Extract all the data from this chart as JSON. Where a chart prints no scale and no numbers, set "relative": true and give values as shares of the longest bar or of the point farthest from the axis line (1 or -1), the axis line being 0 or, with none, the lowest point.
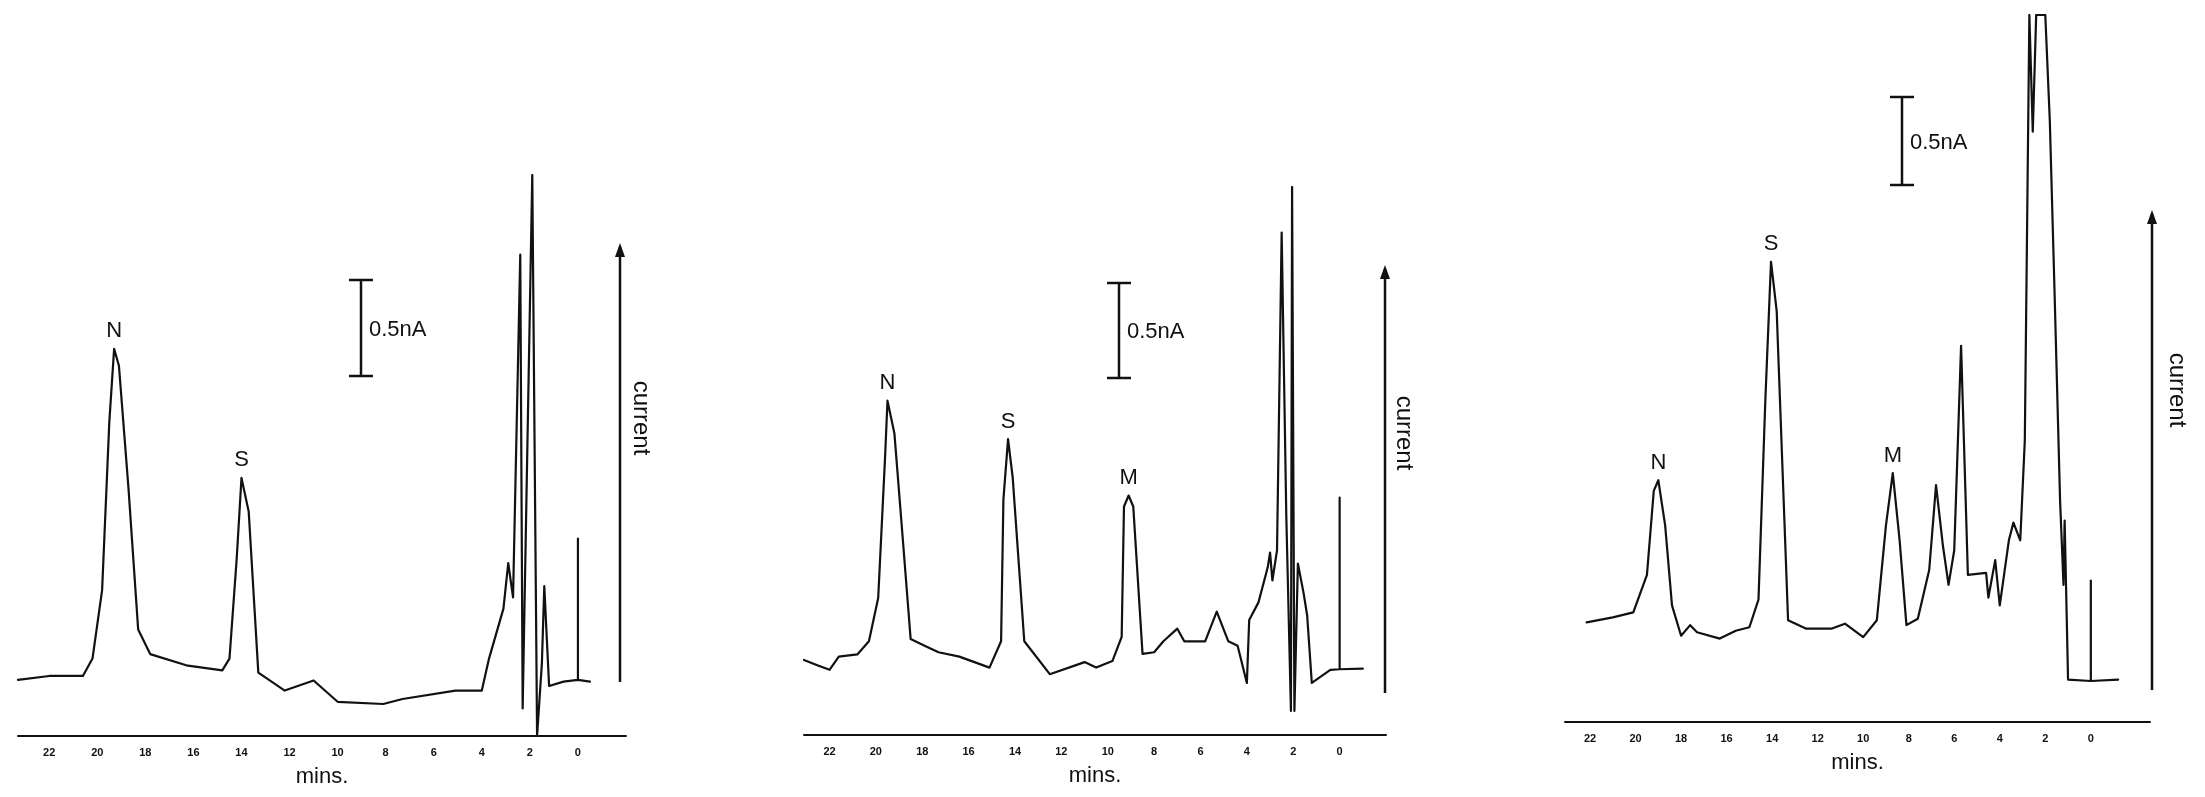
{
  "chart_data": [
    {
      "type": "line",
      "relative": true,
      "xlabel": "mins.",
      "ylabel": "current",
      "xlim": [
        23.3,
        -2.0
      ],
      "xticks": [
        22,
        20,
        18,
        16,
        14,
        12,
        10,
        8,
        6,
        4,
        2,
        0
      ],
      "grid": false,
      "marker": "none",
      "line_style": "solid",
      "x": [
        23.3,
        22.0,
        20.6,
        20.2,
        19.8,
        19.5,
        19.3,
        19.1,
        18.7,
        18.3,
        17.8,
        16.3,
        14.8,
        14.5,
        14.2,
        14.0,
        13.7,
        13.3,
        12.2,
        11.0,
        10.0,
        8.1,
        7.3,
        5.1,
        4.0,
        3.7,
        3.1,
        2.9,
        2.7,
        2.4,
        2.3,
        1.9,
        1.7,
        1.5,
        1.4,
        1.2,
        0.6,
        0.0,
        0.0,
        0.0,
        -0.5
      ],
      "series": [
        {
          "color": "#111111",
          "values": [
            0.1,
            0.107,
            0.107,
            0.138,
            0.26,
            0.56,
            0.69,
            0.66,
            0.44,
            0.19,
            0.146,
            0.126,
            0.117,
            0.138,
            0.316,
            0.46,
            0.4,
            0.113,
            0.081,
            0.099,
            0.061,
            0.057,
            0.066,
            0.081,
            0.081,
            0.138,
            0.227,
            0.308,
            0.247,
            0.858,
            0.049,
            1.0,
            0.0,
            0.13,
            0.267,
            0.089,
            0.097,
            0.1,
            0.352,
            0.1,
            0.097
          ]
        }
      ],
      "annotations": [
        "0.5nA",
        {
          "text": "N",
          "x": 19.3,
          "y": 0.69
        },
        {
          "text": "S",
          "x": 14.0,
          "y": 0.46
        }
      ]
    },
    {
      "type": "line",
      "relative": true,
      "xlabel": "mins.",
      "ylabel": "current",
      "xlim": [
        23.1,
        -2.0
      ],
      "xticks": [
        22,
        20,
        18,
        16,
        14,
        12,
        10,
        8,
        6,
        4,
        2,
        0
      ],
      "grid": false,
      "marker": "none",
      "line_style": "solid",
      "x": [
        23.1,
        22.5,
        22.0,
        21.6,
        20.8,
        20.3,
        19.9,
        19.6,
        19.5,
        19.2,
        18.9,
        18.5,
        17.9,
        17.3,
        16.4,
        15.1,
        14.6,
        14.5,
        14.3,
        14.1,
        13.6,
        12.5,
        11.4,
        11.0,
        10.5,
        9.8,
        9.4,
        9.3,
        9.1,
        8.9,
        8.5,
        8.0,
        7.6,
        7.0,
        6.7,
        5.8,
        5.3,
        4.8,
        4.4,
        4.0,
        3.9,
        3.5,
        3.1,
        3.0,
        2.9,
        2.7,
        2.5,
        2.3,
        2.1,
        2.05,
        1.95,
        1.8,
        1.55,
        1.4,
        1.2,
        0.4,
        0.0,
        0.0,
        0.0,
        -1.0
      ],
      "series": [
        {
          "color": "#111111",
          "values": [
            0.137,
            0.127,
            0.119,
            0.143,
            0.147,
            0.171,
            0.25,
            0.51,
            0.61,
            0.55,
            0.39,
            0.175,
            0.163,
            0.151,
            0.143,
            0.123,
            0.171,
            0.43,
            0.54,
            0.47,
            0.171,
            0.111,
            0.127,
            0.133,
            0.123,
            0.135,
            0.179,
            0.417,
            0.437,
            0.417,
            0.148,
            0.151,
            0.171,
            0.194,
            0.171,
            0.171,
            0.225,
            0.171,
            0.163,
            0.095,
            0.21,
            0.242,
            0.306,
            0.333,
            0.282,
            0.337,
            0.917,
            0.4,
            0.044,
            1.0,
            0.044,
            0.313,
            0.258,
            0.218,
            0.095,
            0.119,
            0.12,
            0.433,
            0.12,
            0.121
          ]
        }
      ],
      "annotations": [
        "0.5nA",
        {
          "text": "N",
          "x": 19.5,
          "y": 0.61
        },
        {
          "text": "S",
          "x": 14.3,
          "y": 0.54
        },
        {
          "text": "M",
          "x": 9.1,
          "y": 0.437
        }
      ]
    },
    {
      "type": "line",
      "relative": true,
      "xlabel": "mins.",
      "ylabel": "current",
      "xlim": [
        23.1,
        -2.6
      ],
      "xticks": [
        22,
        20,
        18,
        16,
        14,
        12,
        10,
        8,
        6,
        4,
        2,
        0
      ],
      "grid": false,
      "marker": "none",
      "line_style": "solid",
      "x": [
        22.15,
        21.0,
        20.1,
        19.5,
        19.2,
        19.0,
        18.7,
        18.4,
        18.0,
        17.6,
        17.3,
        16.3,
        15.6,
        15.0,
        14.6,
        14.3,
        14.05,
        13.8,
        13.3,
        12.5,
        11.4,
        10.8,
        10.0,
        9.4,
        9.0,
        8.7,
        8.4,
        8.1,
        7.6,
        7.1,
        6.8,
        6.5,
        6.25,
        6.0,
        5.7,
        5.4,
        4.6,
        4.5,
        4.2,
        4.0,
        3.6,
        3.4,
        3.1,
        2.9,
        2.7,
        2.55,
        2.4,
        2.0,
        1.8,
        1.6,
        1.35,
        1.2,
        1.15,
        1.0,
        0.0,
        0.0,
        0.0,
        -1.2
      ],
      "series": [
        {
          "color": "#111111",
          "values": [
            0.141,
            0.148,
            0.155,
            0.208,
            0.327,
            0.342,
            0.278,
            0.165,
            0.122,
            0.137,
            0.127,
            0.118,
            0.129,
            0.134,
            0.173,
            0.454,
            0.651,
            0.581,
            0.144,
            0.132,
            0.132,
            0.139,
            0.12,
            0.144,
            0.278,
            0.352,
            0.257,
            0.137,
            0.146,
            0.215,
            0.335,
            0.25,
            0.194,
            0.243,
            0.532,
            0.208,
            0.211,
            0.176,
            0.229,
            0.165,
            0.257,
            0.282,
            0.257,
            0.398,
            1.0,
            0.835,
            1.0,
            1.0,
            0.849,
            0.616,
            0.313,
            0.194,
            0.285,
            0.06,
            0.058,
            0.2,
            0.058,
            0.06
          ]
        }
      ],
      "annotations": [
        "0.5nA",
        {
          "text": "N",
          "x": 19.0,
          "y": 0.342
        },
        {
          "text": "S",
          "x": 14.05,
          "y": 0.651
        },
        {
          "text": "M",
          "x": 8.7,
          "y": 0.352
        }
      ]
    }
  ]
}
